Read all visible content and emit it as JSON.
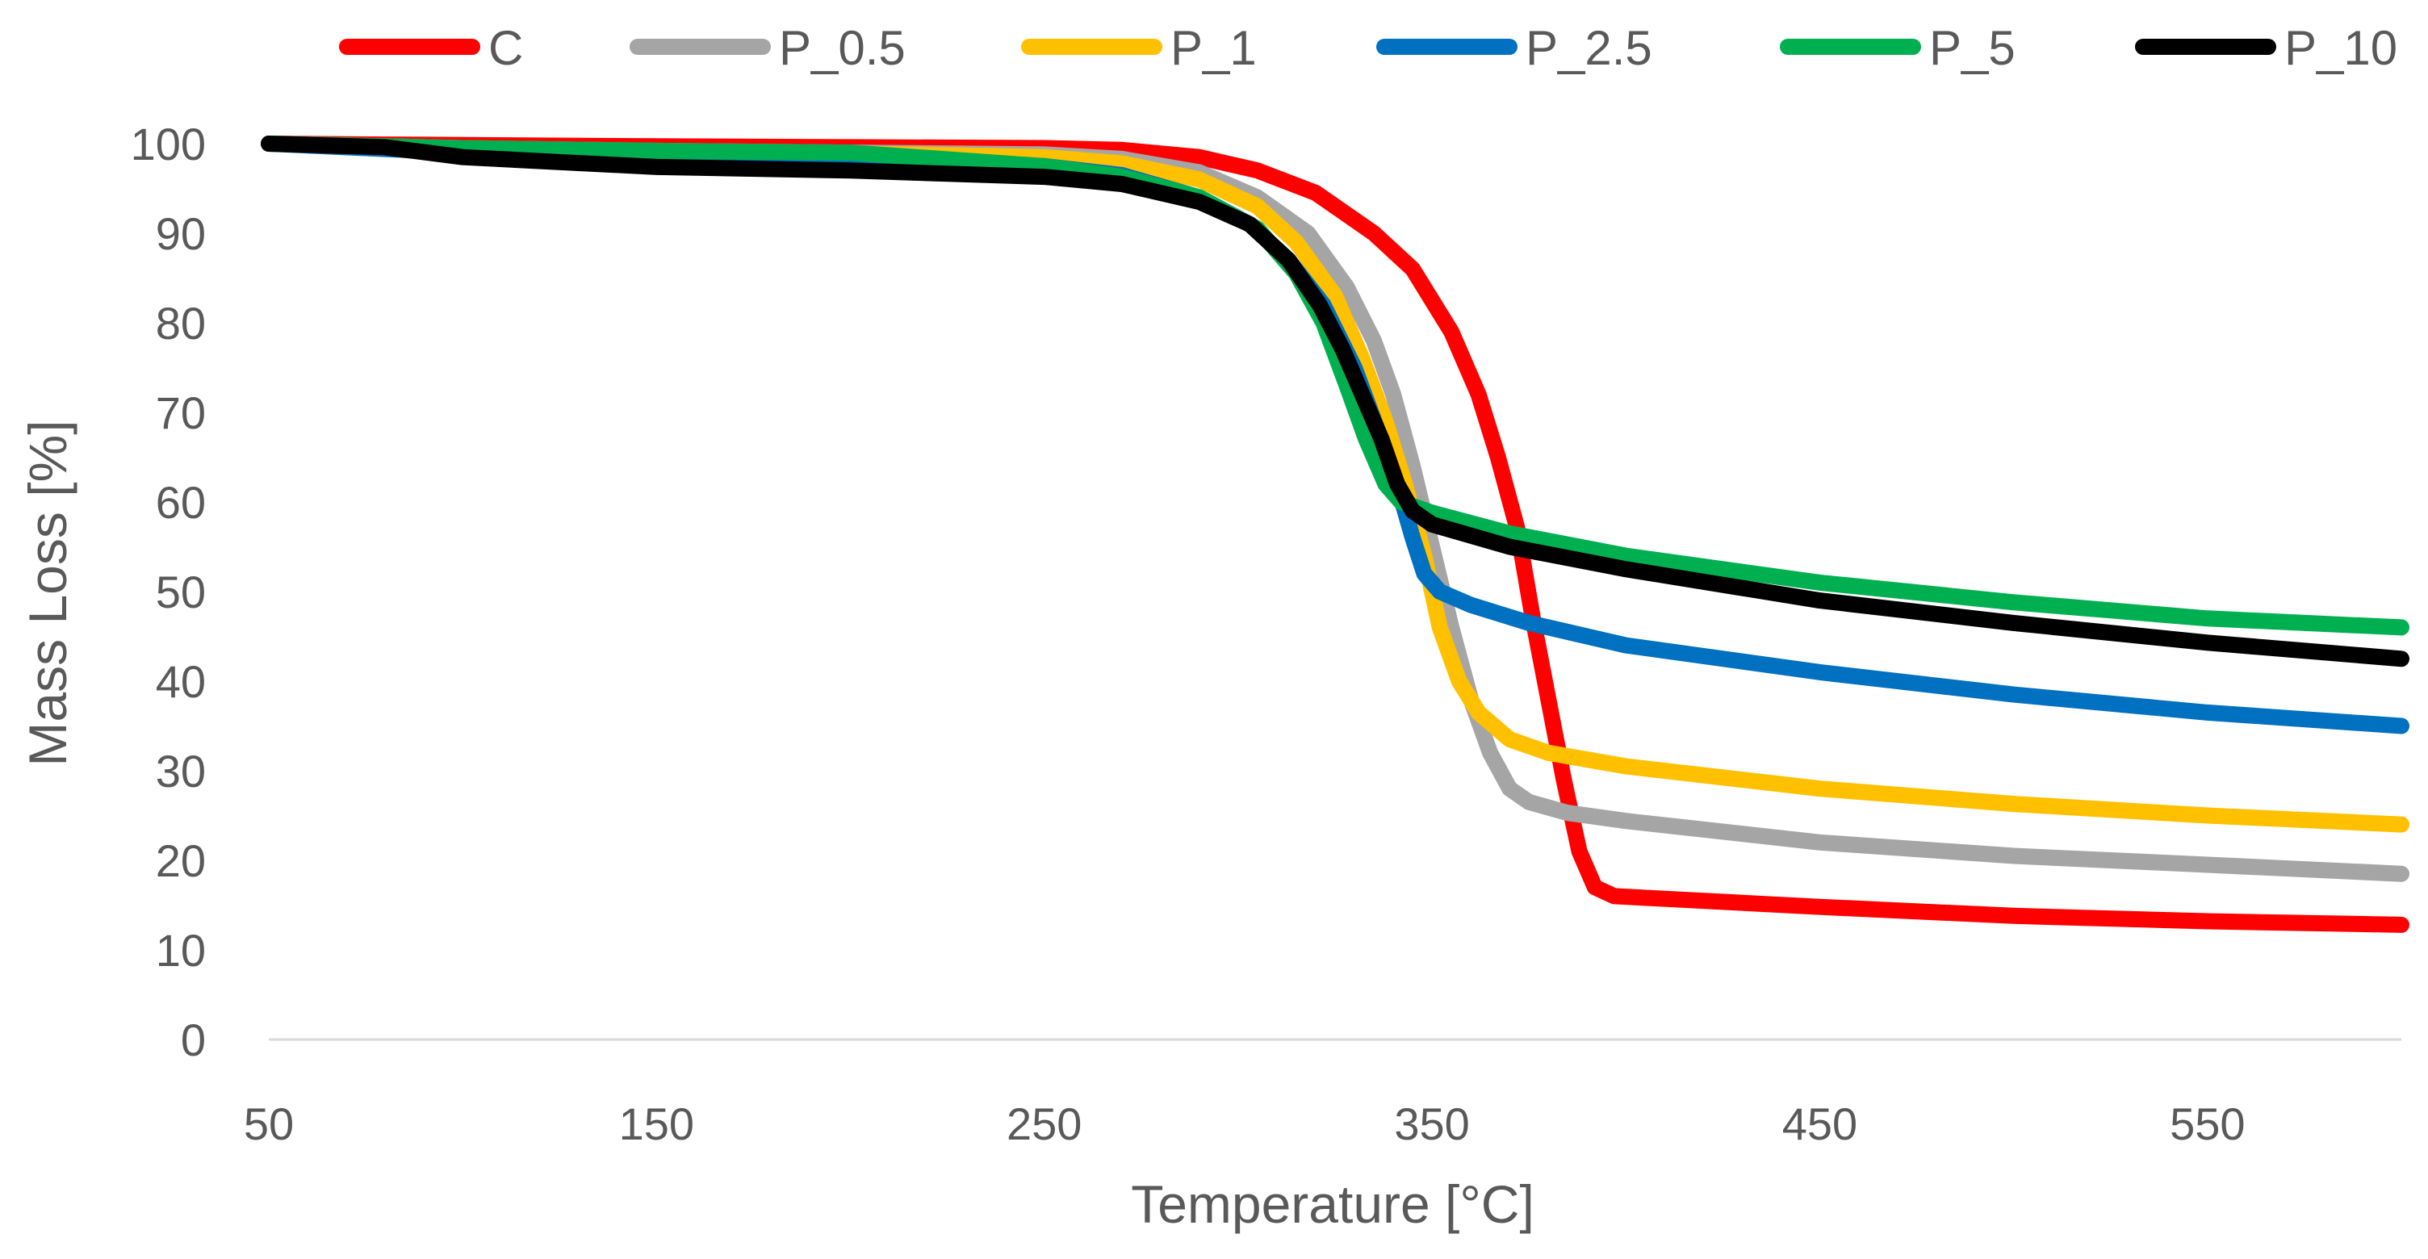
{
  "chart_data": {
    "type": "line",
    "title": "",
    "xlabel": "Temperature [°C]",
    "ylabel": "Mass Loss [%]",
    "xlim": [
      50,
      600
    ],
    "ylim": [
      0,
      100
    ],
    "x_ticks": [
      50,
      150,
      250,
      350,
      450,
      550
    ],
    "y_ticks": [
      0,
      10,
      20,
      30,
      40,
      50,
      60,
      70,
      80,
      90,
      100
    ],
    "grid": "horizontal",
    "legend_position": "top",
    "series": [
      {
        "name": "C",
        "color": "#ff0000",
        "points": [
          [
            50,
            100
          ],
          [
            80,
            99.9
          ],
          [
            150,
            99.7
          ],
          [
            200,
            99.6
          ],
          [
            250,
            99.5
          ],
          [
            270,
            99.3
          ],
          [
            290,
            98.5
          ],
          [
            305,
            97
          ],
          [
            320,
            94.5
          ],
          [
            335,
            90
          ],
          [
            345,
            86
          ],
          [
            355,
            79
          ],
          [
            362,
            72
          ],
          [
            367,
            65
          ],
          [
            372,
            57
          ],
          [
            376,
            47
          ],
          [
            380,
            38
          ],
          [
            384,
            29
          ],
          [
            388,
            21
          ],
          [
            392,
            17
          ],
          [
            397,
            16
          ],
          [
            410,
            15.7
          ],
          [
            450,
            14.8
          ],
          [
            500,
            13.8
          ],
          [
            550,
            13.2
          ],
          [
            600,
            12.8
          ]
        ]
      },
      {
        "name": "P_0.5",
        "color": "#a5a5a5",
        "points": [
          [
            50,
            100
          ],
          [
            100,
            99.5
          ],
          [
            150,
            99.2
          ],
          [
            200,
            99
          ],
          [
            250,
            98.8
          ],
          [
            270,
            98.3
          ],
          [
            290,
            96.8
          ],
          [
            305,
            94
          ],
          [
            318,
            90
          ],
          [
            328,
            84
          ],
          [
            335,
            78
          ],
          [
            340,
            72
          ],
          [
            345,
            64
          ],
          [
            350,
            55
          ],
          [
            355,
            46
          ],
          [
            360,
            38
          ],
          [
            365,
            32
          ],
          [
            370,
            28
          ],
          [
            375,
            26.5
          ],
          [
            385,
            25.3
          ],
          [
            400,
            24.4
          ],
          [
            450,
            22
          ],
          [
            500,
            20.5
          ],
          [
            550,
            19.5
          ],
          [
            600,
            18.5
          ]
        ]
      },
      {
        "name": "P_1",
        "color": "#ffc000",
        "points": [
          [
            50,
            100
          ],
          [
            100,
            99.4
          ],
          [
            150,
            99.1
          ],
          [
            200,
            98.9
          ],
          [
            250,
            98.5
          ],
          [
            270,
            97.8
          ],
          [
            290,
            96
          ],
          [
            305,
            93
          ],
          [
            315,
            89
          ],
          [
            325,
            83
          ],
          [
            332,
            76
          ],
          [
            338,
            69
          ],
          [
            343,
            62
          ],
          [
            348,
            54
          ],
          [
            352,
            46
          ],
          [
            357,
            40
          ],
          [
            362,
            36.5
          ],
          [
            370,
            33.5
          ],
          [
            380,
            32
          ],
          [
            400,
            30.5
          ],
          [
            450,
            28
          ],
          [
            500,
            26.3
          ],
          [
            550,
            25
          ],
          [
            600,
            24
          ]
        ]
      },
      {
        "name": "P_2.5",
        "color": "#0070c0",
        "points": [
          [
            50,
            100
          ],
          [
            100,
            99
          ],
          [
            150,
            98.6
          ],
          [
            200,
            98.2
          ],
          [
            250,
            97.5
          ],
          [
            270,
            96.5
          ],
          [
            290,
            94
          ],
          [
            303,
            91
          ],
          [
            313,
            87
          ],
          [
            322,
            82
          ],
          [
            330,
            75
          ],
          [
            336,
            68
          ],
          [
            341,
            62
          ],
          [
            345,
            56
          ],
          [
            348,
            52
          ],
          [
            352,
            50
          ],
          [
            360,
            48.5
          ],
          [
            375,
            46.5
          ],
          [
            400,
            44
          ],
          [
            450,
            41
          ],
          [
            500,
            38.5
          ],
          [
            550,
            36.5
          ],
          [
            600,
            35
          ]
        ]
      },
      {
        "name": "P_5",
        "color": "#00b050",
        "points": [
          [
            50,
            100
          ],
          [
            100,
            99.5
          ],
          [
            150,
            99.2
          ],
          [
            200,
            99
          ],
          [
            250,
            97.5
          ],
          [
            270,
            96.3
          ],
          [
            290,
            94
          ],
          [
            305,
            90.5
          ],
          [
            315,
            85.5
          ],
          [
            322,
            80
          ],
          [
            328,
            73
          ],
          [
            333,
            67
          ],
          [
            338,
            62
          ],
          [
            342,
            60
          ],
          [
            350,
            58.8
          ],
          [
            370,
            56.5
          ],
          [
            400,
            54
          ],
          [
            450,
            51
          ],
          [
            500,
            48.8
          ],
          [
            550,
            47
          ],
          [
            600,
            46
          ]
        ]
      },
      {
        "name": "P_10",
        "color": "#000000",
        "points": [
          [
            50,
            100
          ],
          [
            80,
            99.6
          ],
          [
            100,
            98.5
          ],
          [
            150,
            97.4
          ],
          [
            200,
            97
          ],
          [
            250,
            96.3
          ],
          [
            270,
            95.5
          ],
          [
            290,
            93.5
          ],
          [
            303,
            91
          ],
          [
            313,
            87
          ],
          [
            321,
            82
          ],
          [
            327,
            77
          ],
          [
            332,
            72
          ],
          [
            337,
            67
          ],
          [
            341,
            62
          ],
          [
            345,
            59
          ],
          [
            350,
            57.5
          ],
          [
            370,
            55
          ],
          [
            400,
            52.5
          ],
          [
            450,
            49
          ],
          [
            500,
            46.5
          ],
          [
            550,
            44.3
          ],
          [
            600,
            42.5
          ]
        ]
      }
    ]
  }
}
